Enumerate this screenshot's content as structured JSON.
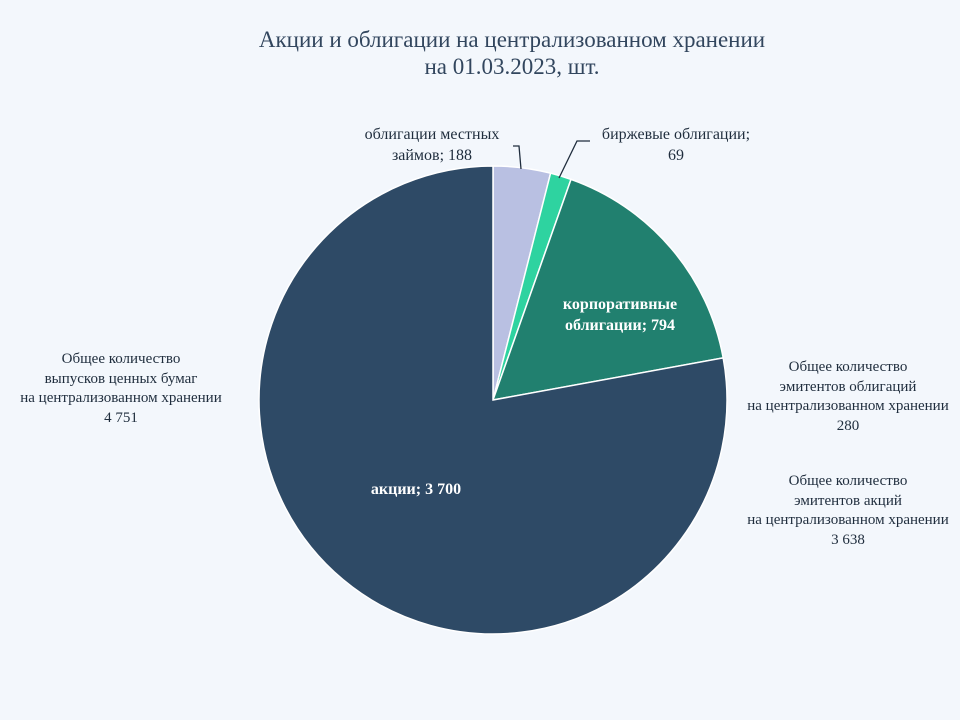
{
  "chart_data": {
    "type": "pie",
    "title": [
      "Акции и облигации на централизованном хранении",
      "на 01.03.2023, шт."
    ],
    "slices": [
      {
        "label_lines": [
          "облигации местных",
          "займов; 188"
        ],
        "value": 188,
        "color": "#b9c0e2",
        "label_pos": "outside"
      },
      {
        "label_lines": [
          "биржевые облигации;",
          "69"
        ],
        "value": 69,
        "color": "#2ed3a0",
        "label_pos": "outside"
      },
      {
        "label_lines": [
          "корпоративные",
          "облигации; 794"
        ],
        "value": 794,
        "color": "#21806f",
        "label_pos": "inside"
      },
      {
        "label_lines": [
          "акции; 3 700"
        ],
        "value": 3700,
        "color": "#2e4a66",
        "label_pos": "inside"
      }
    ]
  },
  "notes": {
    "total": [
      "Общее количество",
      "выпусков ценных бумаг",
      "на централизованном хранении",
      "4 751"
    ],
    "bond_issuers": [
      "Общее количество",
      "эмитентов облигаций",
      "на централизованном хранении",
      "280"
    ],
    "share_issuers": [
      "Общее количество",
      "эмитентов акций",
      "на централизованном хранении",
      "3 638"
    ]
  }
}
